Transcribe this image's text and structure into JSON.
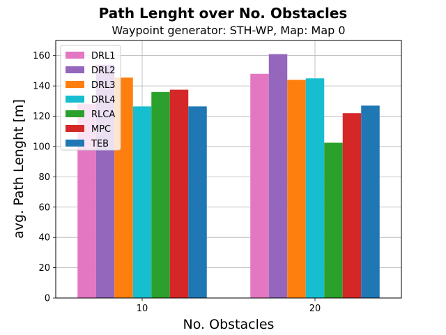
{
  "chart_data": {
    "type": "bar",
    "title": "Path Lenght over No. Obstacles",
    "subtitle": "Waypoint generator: STH-WP, Map: Map 0",
    "xlabel": "No. Obstacles",
    "ylabel": "avg. Path Lenght [m]",
    "categories": [
      "10",
      "20"
    ],
    "ylim": [
      0,
      170
    ],
    "yticks": [
      0,
      20,
      40,
      60,
      80,
      100,
      120,
      140,
      160
    ],
    "grid": true,
    "legend_position": "top-left",
    "series": [
      {
        "name": "DRL1",
        "color": "#e377c2",
        "values": [
          128,
          148
        ]
      },
      {
        "name": "DRL2",
        "color": "#9467bd",
        "values": [
          154,
          161
        ]
      },
      {
        "name": "DRL3",
        "color": "#ff7f0e",
        "values": [
          145.5,
          144
        ]
      },
      {
        "name": "DRL4",
        "color": "#17becf",
        "values": [
          126.5,
          145
        ]
      },
      {
        "name": "RLCA",
        "color": "#2ca02c",
        "values": [
          136,
          102.5
        ]
      },
      {
        "name": "MPC",
        "color": "#d62728",
        "values": [
          137.5,
          122
        ]
      },
      {
        "name": "TEB",
        "color": "#1f77b4",
        "values": [
          126.5,
          127
        ]
      }
    ]
  }
}
